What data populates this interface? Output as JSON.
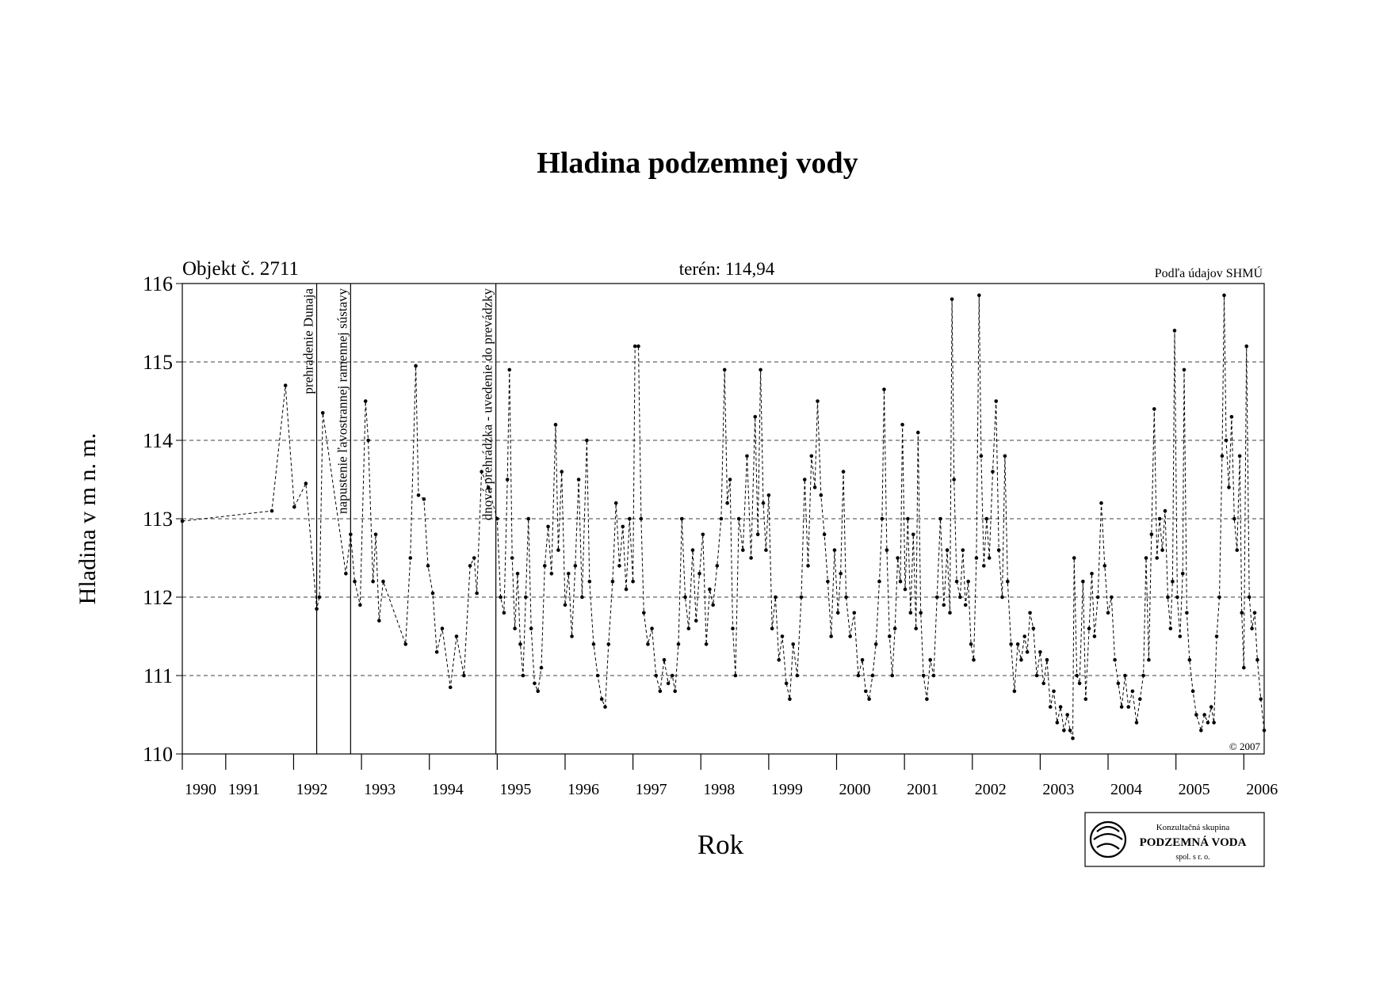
{
  "chart_data": {
    "type": "line",
    "title": "Hladina podzemnej vody",
    "object_label": "Objekt č. 2711",
    "terrain_label": "terén: 114,94",
    "source": "Podľa údajov SHMÚ",
    "copyright": "© 2007",
    "ylabel": "Hladina v m n. m.",
    "xlabel": "Rok",
    "logo": {
      "line1": "Konzultačná skupina",
      "line2": "PODZEMNÁ VODA",
      "line3": "spol. s r. o."
    },
    "xlim": [
      1990.36,
      2006.3
    ],
    "ylim": [
      110,
      116
    ],
    "yticks": [
      110,
      111,
      112,
      113,
      114,
      115,
      116
    ],
    "xticks": [
      {
        "value": 1990.36,
        "label": "1990"
      },
      1991,
      1992,
      1993,
      1994,
      1995,
      1996,
      1997,
      1998,
      1999,
      2000,
      2001,
      2002,
      2003,
      2004,
      2005,
      2006
    ],
    "grid": true,
    "color": "#000000",
    "events": [
      {
        "x": 1992.34,
        "label": "prehradenie Dunaja"
      },
      {
        "x": 1992.84,
        "label": "napustenie ľavostrannej ramennej sústavy"
      },
      {
        "x": 1994.98,
        "label": "dnová prehrádzka - uvedenie do prevádzky"
      }
    ],
    "x": [
      1990.36,
      1991.68,
      1991.88,
      1992.01,
      1992.18,
      1992.34,
      1992.38,
      1992.43,
      1992.77,
      1992.84,
      1992.9,
      1992.98,
      1993.06,
      1993.1,
      1993.17,
      1993.21,
      1993.26,
      1993.32,
      1993.65,
      1993.72,
      1993.8,
      1993.84,
      1993.92,
      1993.98,
      1994.05,
      1994.11,
      1994.19,
      1994.31,
      1994.4,
      1994.51,
      1994.6,
      1994.66,
      1994.7,
      1994.77,
      1994.87,
      1995.0,
      1995.05,
      1995.1,
      1995.15,
      1995.18,
      1995.22,
      1995.26,
      1995.3,
      1995.34,
      1995.38,
      1995.42,
      1995.46,
      1995.5,
      1995.55,
      1995.6,
      1995.65,
      1995.7,
      1995.75,
      1995.8,
      1995.86,
      1995.9,
      1995.95,
      1996.0,
      1996.05,
      1996.1,
      1996.15,
      1996.2,
      1996.25,
      1996.32,
      1996.36,
      1996.42,
      1996.48,
      1996.54,
      1996.59,
      1996.64,
      1996.7,
      1996.75,
      1996.8,
      1996.85,
      1996.9,
      1996.95,
      1997.0,
      1997.03,
      1997.08,
      1997.12,
      1997.16,
      1997.22,
      1997.28,
      1997.34,
      1997.4,
      1997.46,
      1997.52,
      1997.58,
      1997.62,
      1997.67,
      1997.72,
      1997.77,
      1997.82,
      1997.88,
      1997.93,
      1997.98,
      1998.03,
      1998.08,
      1998.13,
      1998.18,
      1998.24,
      1998.3,
      1998.35,
      1998.39,
      1998.43,
      1998.47,
      1998.51,
      1998.56,
      1998.62,
      1998.68,
      1998.74,
      1998.8,
      1998.84,
      1998.88,
      1998.92,
      1998.96,
      1999.0,
      1999.05,
      1999.1,
      1999.15,
      1999.2,
      1999.26,
      1999.31,
      1999.36,
      1999.42,
      1999.48,
      1999.53,
      1999.58,
      1999.63,
      1999.68,
      1999.72,
      1999.77,
      1999.82,
      1999.87,
      1999.92,
      1999.97,
      2000.02,
      2000.06,
      2000.1,
      2000.14,
      2000.2,
      2000.26,
      2000.32,
      2000.38,
      2000.43,
      2000.48,
      2000.53,
      2000.58,
      2000.63,
      2000.67,
      2000.7,
      2000.74,
      2000.78,
      2000.82,
      2000.86,
      2000.9,
      2000.94,
      2000.97,
      2001.01,
      2001.05,
      2001.09,
      2001.13,
      2001.17,
      2001.2,
      2001.24,
      2001.28,
      2001.33,
      2001.38,
      2001.43,
      2001.48,
      2001.53,
      2001.58,
      2001.63,
      2001.67,
      2001.7,
      2001.73,
      2001.77,
      2001.82,
      2001.86,
      2001.9,
      2001.94,
      2001.98,
      2002.02,
      2002.06,
      2002.1,
      2002.13,
      2002.17,
      2002.21,
      2002.25,
      2002.3,
      2002.35,
      2002.39,
      2002.44,
      2002.48,
      2002.52,
      2002.57,
      2002.62,
      2002.67,
      2002.72,
      2002.77,
      2002.81,
      2002.85,
      2002.9,
      2002.95,
      2003.0,
      2003.05,
      2003.1,
      2003.15,
      2003.2,
      2003.25,
      2003.3,
      2003.35,
      2003.4,
      2003.44,
      2003.48,
      2003.5,
      2003.54,
      2003.58,
      2003.63,
      2003.67,
      2003.72,
      2003.76,
      2003.8,
      2003.85,
      2003.9,
      2003.95,
      2004.0,
      2004.05,
      2004.1,
      2004.15,
      2004.2,
      2004.25,
      2004.3,
      2004.36,
      2004.42,
      2004.47,
      2004.52,
      2004.56,
      2004.6,
      2004.64,
      2004.68,
      2004.72,
      2004.76,
      2004.8,
      2004.84,
      2004.88,
      2004.92,
      2004.95,
      2004.98,
      2005.02,
      2005.06,
      2005.1,
      2005.12,
      2005.16,
      2005.2,
      2005.25,
      2005.3,
      2005.37,
      2005.42,
      2005.47,
      2005.52,
      2005.56,
      2005.6,
      2005.64,
      2005.68,
      2005.71,
      2005.74,
      2005.78,
      2005.82,
      2005.86,
      2005.9,
      2005.94,
      2005.97,
      2006.0,
      2006.04,
      2006.08,
      2006.12,
      2006.16,
      2006.2,
      2006.25,
      2006.3
    ],
    "values": [
      112.97,
      113.1,
      114.7,
      113.15,
      113.45,
      111.85,
      112.0,
      114.35,
      112.3,
      112.8,
      112.2,
      111.9,
      114.5,
      114.0,
      112.2,
      112.8,
      111.7,
      112.2,
      111.4,
      112.5,
      114.95,
      113.3,
      113.25,
      112.4,
      112.05,
      111.3,
      111.6,
      110.85,
      111.5,
      111.0,
      112.4,
      112.5,
      112.05,
      113.6,
      113.4,
      113.0,
      112.0,
      111.8,
      113.5,
      114.9,
      112.5,
      111.6,
      112.3,
      111.4,
      111.0,
      112.0,
      113.0,
      111.6,
      110.9,
      110.8,
      111.1,
      112.4,
      112.9,
      112.3,
      114.2,
      112.6,
      113.6,
      111.9,
      112.3,
      111.5,
      112.4,
      113.5,
      112.0,
      114.0,
      112.2,
      111.4,
      111.0,
      110.7,
      110.6,
      111.4,
      112.2,
      113.2,
      112.4,
      112.9,
      112.1,
      113.0,
      112.2,
      115.2,
      115.2,
      113.0,
      111.8,
      111.4,
      111.6,
      111.0,
      110.8,
      111.2,
      110.9,
      111.0,
      110.8,
      111.4,
      113.0,
      112.0,
      111.6,
      112.6,
      111.7,
      112.3,
      112.8,
      111.4,
      112.1,
      111.9,
      112.4,
      113.0,
      114.9,
      113.2,
      113.5,
      111.6,
      111.0,
      113.0,
      112.6,
      113.8,
      112.5,
      114.3,
      112.8,
      114.9,
      113.2,
      112.6,
      113.3,
      111.6,
      112.0,
      111.2,
      111.5,
      110.9,
      110.7,
      111.4,
      111.0,
      112.0,
      113.5,
      112.4,
      113.8,
      113.4,
      114.5,
      113.3,
      112.8,
      112.2,
      111.5,
      112.6,
      111.8,
      112.3,
      113.6,
      112.0,
      111.5,
      111.8,
      111.0,
      111.2,
      110.8,
      110.7,
      111.0,
      111.4,
      112.2,
      113.0,
      114.65,
      112.6,
      111.5,
      111.0,
      111.6,
      112.5,
      112.2,
      114.2,
      112.1,
      113.0,
      111.8,
      112.8,
      111.6,
      114.1,
      111.8,
      111.0,
      110.7,
      111.2,
      111.0,
      112.0,
      113.0,
      111.9,
      112.6,
      111.8,
      115.8,
      113.5,
      112.2,
      112.0,
      112.6,
      111.9,
      112.2,
      111.4,
      111.2,
      112.5,
      115.85,
      113.8,
      112.4,
      113.0,
      112.5,
      113.6,
      114.5,
      112.6,
      112.0,
      113.8,
      112.2,
      111.4,
      110.8,
      111.4,
      111.2,
      111.5,
      111.3,
      111.8,
      111.6,
      111.0,
      111.3,
      110.9,
      111.2,
      110.6,
      110.8,
      110.4,
      110.6,
      110.3,
      110.5,
      110.3,
      110.2,
      112.5,
      111.0,
      110.9,
      112.2,
      110.7,
      111.6,
      112.3,
      111.5,
      112.0,
      113.2,
      112.4,
      111.8,
      112.0,
      111.2,
      110.9,
      110.6,
      111.0,
      110.6,
      110.8,
      110.4,
      110.7,
      111.0,
      112.5,
      111.2,
      112.8,
      114.4,
      112.5,
      113.0,
      112.6,
      113.1,
      112.0,
      111.6,
      112.2,
      115.4,
      112.0,
      111.5,
      112.3,
      114.9,
      111.8,
      111.2,
      110.8,
      110.5,
      110.3,
      110.5,
      110.4,
      110.6,
      110.4,
      111.5,
      112.0,
      113.8,
      115.85,
      114.0,
      113.4,
      114.3,
      113.0,
      112.6,
      113.8,
      111.8,
      111.1,
      115.2,
      112.0,
      111.6,
      111.8,
      111.2,
      110.7,
      110.3
    ]
  }
}
